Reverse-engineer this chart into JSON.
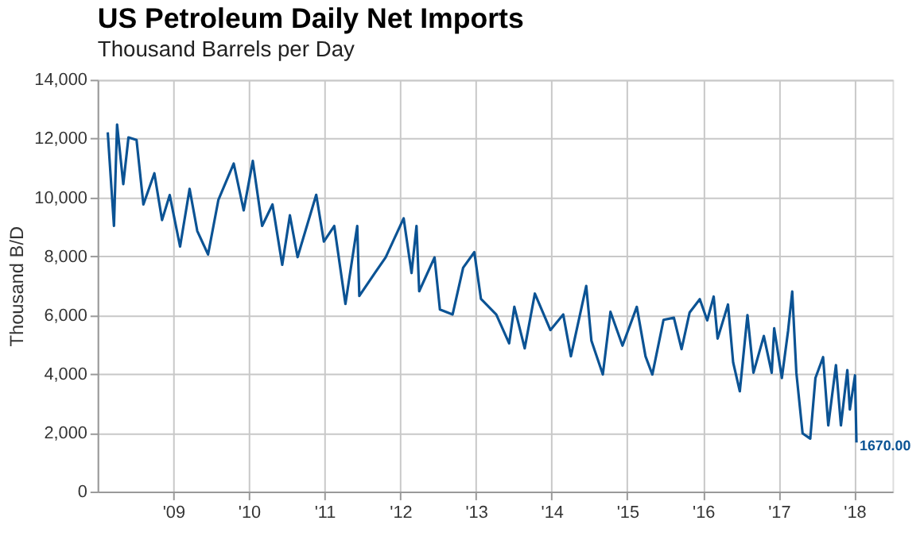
{
  "chart_data": {
    "type": "line",
    "title": "US Petroleum Daily Net Imports",
    "subtitle": "Thousand Barrels per Day",
    "ylabel": "Thousand B/D",
    "x": [
      "2008-08-19",
      "2008-09-18",
      "2008-10-03",
      "2008-11-02",
      "2008-11-27",
      "2009-01-05",
      "2009-02-07",
      "2009-04-01",
      "2009-05-08",
      "2009-06-14",
      "2009-08-03",
      "2009-09-18",
      "2009-10-25",
      "2009-12-16",
      "2010-02-04",
      "2010-04-19",
      "2010-06-06",
      "2010-07-20",
      "2010-09-03",
      "2010-10-23",
      "2010-12-09",
      "2011-01-15",
      "2011-02-21",
      "2011-05-22",
      "2011-06-28",
      "2011-08-17",
      "2011-10-10",
      "2011-12-06",
      "2011-12-16",
      "2012-03-01",
      "2012-04-21",
      "2012-07-17",
      "2012-08-24",
      "2012-09-17",
      "2012-09-30",
      "2012-12-13",
      "2013-01-08",
      "2013-03-10",
      "2013-04-30",
      "2013-06-23",
      "2013-07-25",
      "2013-10-07",
      "2013-12-08",
      "2014-01-02",
      "2014-02-21",
      "2014-04-11",
      "2014-06-25",
      "2014-08-26",
      "2014-10-02",
      "2014-12-15",
      "2015-01-09",
      "2015-03-05",
      "2015-04-11",
      "2015-06-08",
      "2015-08-16",
      "2015-09-27",
      "2015-10-30",
      "2015-12-23",
      "2016-02-11",
      "2016-03-19",
      "2016-04-27",
      "2016-06-15",
      "2016-07-21",
      "2016-08-21",
      "2016-09-09",
      "2016-10-29",
      "2016-11-23",
      "2016-12-25",
      "2017-01-31",
      "2017-03-01",
      "2017-04-20",
      "2017-05-28",
      "2017-06-09",
      "2017-07-16",
      "2017-08-15",
      "2017-09-04",
      "2017-09-24",
      "2017-10-24",
      "2017-11-30",
      "2017-12-25",
      "2018-01-31",
      "2018-02-25",
      "2018-04-03",
      "2018-04-27",
      "2018-05-28",
      "2018-06-09",
      "2018-07-04",
      "2018-07-11"
    ],
    "series": [
      {
        "color": "#0b5394",
        "values": [
          12210,
          9030,
          12480,
          10450,
          12040,
          11950,
          9760,
          10820,
          9230,
          10080,
          8330,
          10290,
          8860,
          8060,
          9920,
          11150,
          9560,
          11240,
          9030,
          9760,
          7710,
          9390,
          7970,
          10090,
          8500,
          9030,
          6380,
          9030,
          6650,
          7440,
          7960,
          9290,
          7430,
          9030,
          6810,
          7960,
          6190,
          6020,
          7610,
          8140,
          6550,
          6020,
          5040,
          6280,
          4870,
          6730,
          5490,
          6020,
          4600,
          6990,
          5130,
          3980,
          6110,
          4960,
          6280,
          4600,
          3980,
          5840,
          5910,
          4840,
          6090,
          6540,
          5820,
          6630,
          5200,
          6360,
          4390,
          3410,
          6000,
          4040,
          5290,
          4040,
          5550,
          3860,
          5460,
          6800,
          4040,
          1980,
          1800,
          3860,
          4570,
          2250,
          4300,
          2250,
          4130,
          2790,
          3950,
          1670
        ]
      }
    ],
    "xlim": [
      "2008-07-01",
      "2019-01-01"
    ],
    "xticks": [
      {
        "value": "2009-07-01",
        "label": "'09"
      },
      {
        "value": "2010-07-01",
        "label": "'10"
      },
      {
        "value": "2011-07-01",
        "label": "'11"
      },
      {
        "value": "2012-07-01",
        "label": "'12"
      },
      {
        "value": "2013-07-01",
        "label": "'13"
      },
      {
        "value": "2014-07-01",
        "label": "'14"
      },
      {
        "value": "2015-07-01",
        "label": "'15"
      },
      {
        "value": "2016-07-01",
        "label": "'16"
      },
      {
        "value": "2017-07-01",
        "label": "'17"
      },
      {
        "value": "2018-07-01",
        "label": "'18"
      }
    ],
    "ylim": [
      0,
      14000
    ],
    "yticks": [
      0,
      {
        "value": 2000,
        "label": "2,000"
      },
      {
        "value": 4000,
        "label": "4,000"
      },
      {
        "value": 6000,
        "label": "6,000"
      },
      {
        "value": 8000,
        "label": "8,000"
      },
      {
        "value": 10000,
        "label": "10,000"
      },
      {
        "value": 12000,
        "label": "12,000"
      },
      {
        "value": 14000,
        "label": "14,000"
      }
    ],
    "annotations": [
      {
        "text": "1670.00",
        "x": "2018-07-11",
        "y": 1670
      }
    ],
    "grid": true,
    "line_style": "solid",
    "marker": "none"
  }
}
